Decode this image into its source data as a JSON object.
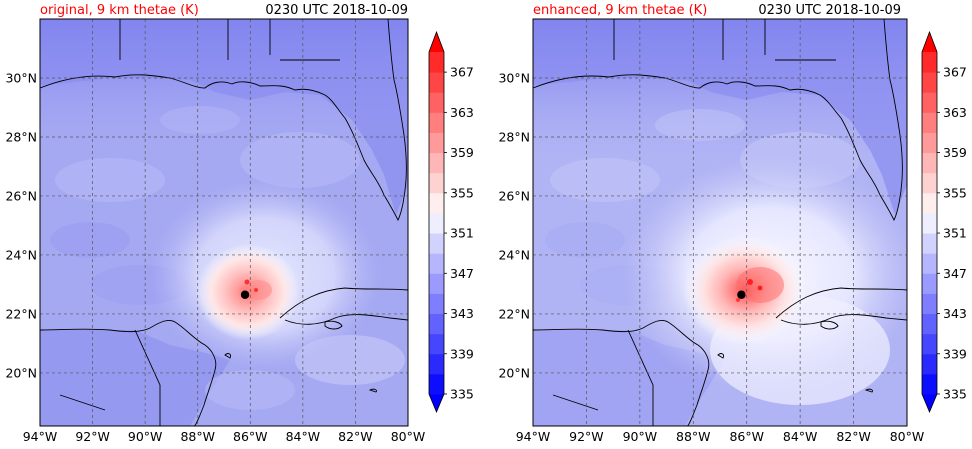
{
  "panels": [
    {
      "title_left": "original, 9 km thetae (K)",
      "title_right": "0230 UTC 2018-10-09",
      "variant": "original"
    },
    {
      "title_left": "enhanced, 9 km thetae (K)",
      "title_right": "0230 UTC 2018-10-09",
      "variant": "enhanced"
    }
  ],
  "map": {
    "lon_range": [
      -94,
      -80
    ],
    "lat_range": [
      18.2,
      32
    ],
    "lon_ticks": [
      {
        "value": -94,
        "label": "94°W"
      },
      {
        "value": -92,
        "label": "92°W"
      },
      {
        "value": -90,
        "label": "90°W"
      },
      {
        "value": -88,
        "label": "88°W"
      },
      {
        "value": -86,
        "label": "86°W"
      },
      {
        "value": -84,
        "label": "84°W"
      },
      {
        "value": -82,
        "label": "82°W"
      },
      {
        "value": -80,
        "label": "80°W"
      }
    ],
    "lat_ticks": [
      {
        "value": 20,
        "label": "20°N"
      },
      {
        "value": 22,
        "label": "22°N"
      },
      {
        "value": 24,
        "label": "24°N"
      },
      {
        "value": 26,
        "label": "26°N"
      },
      {
        "value": 28,
        "label": "28°N"
      },
      {
        "value": 30,
        "label": "30°N"
      }
    ],
    "storm_center": {
      "lon": -86.2,
      "lat": 22.65
    },
    "grid_style": "dashed"
  },
  "colorbar": {
    "min": 335,
    "max": 369,
    "step": 2,
    "tick_values": [
      335,
      339,
      343,
      347,
      351,
      355,
      359,
      363,
      367
    ],
    "tick_labels": [
      "335",
      "339",
      "343",
      "347",
      "351",
      "355",
      "359",
      "363",
      "367"
    ],
    "extend": "both",
    "colors": [
      "#0e0eff",
      "#2a2aff",
      "#4646ff",
      "#6262ff",
      "#7e7eff",
      "#9a9aff",
      "#b6b6ff",
      "#d2d2ff",
      "#eeeeff",
      "#ffeeee",
      "#ffd2d2",
      "#ffb6b6",
      "#ff9a9a",
      "#ff7e7e",
      "#ff6262",
      "#ff4646",
      "#ff2a2a"
    ],
    "extend_low_color": "#0000ff",
    "extend_high_color": "#ff0000"
  },
  "colors": {
    "title_left": "#ff0000",
    "title_right": "#000000",
    "background_field": "#a5a9f2",
    "land_field": "#8e91ee"
  }
}
